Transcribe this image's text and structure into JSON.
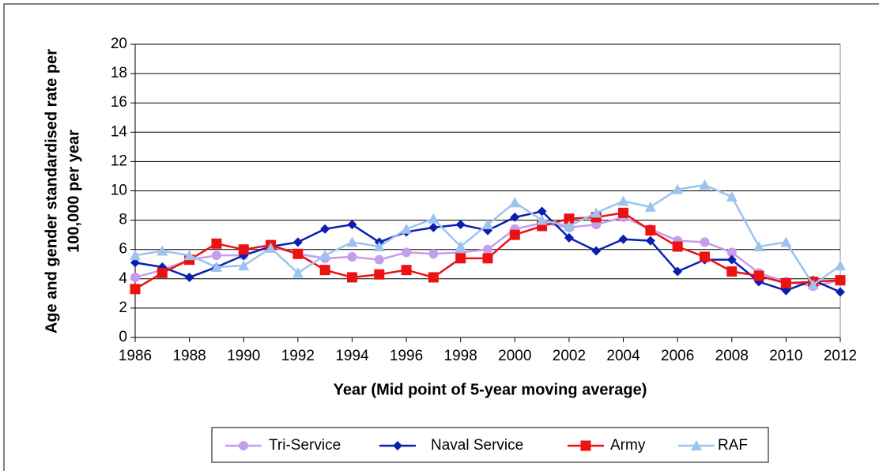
{
  "chart_data": {
    "type": "line",
    "xlabel": "Year (Mid point of 5-year moving average)",
    "ylabel_lines": [
      "Age and gender standardised rate per",
      "100,000 per year"
    ],
    "x": [
      1986,
      1987,
      1988,
      1989,
      1990,
      1991,
      1992,
      1993,
      1994,
      1995,
      1996,
      1997,
      1998,
      1999,
      2000,
      2001,
      2002,
      2003,
      2004,
      2005,
      2006,
      2007,
      2008,
      2009,
      2010,
      2011,
      2012
    ],
    "xlim": [
      1986,
      2012
    ],
    "xticks": [
      1986,
      1988,
      1990,
      1992,
      1994,
      1996,
      1998,
      2000,
      2002,
      2004,
      2006,
      2008,
      2010,
      2012
    ],
    "ylim": [
      0,
      20
    ],
    "yticks": [
      0,
      2,
      4,
      6,
      8,
      10,
      12,
      14,
      16,
      18,
      20
    ],
    "grid": true,
    "legend": "bottom",
    "series": [
      {
        "name": "Tri-Service",
        "color": "#c49ded",
        "marker": "circle",
        "values": [
          4.1,
          4.6,
          5.3,
          5.6,
          5.6,
          6.2,
          5.7,
          5.4,
          5.5,
          5.3,
          5.8,
          5.7,
          5.8,
          6.0,
          7.4,
          7.8,
          7.5,
          7.7,
          8.2,
          7.4,
          6.6,
          6.5,
          5.8,
          4.4,
          3.8,
          3.5,
          3.9
        ]
      },
      {
        "name": "Naval Service",
        "color": "#0a1fb0",
        "marker": "diamond",
        "values": [
          5.1,
          4.8,
          4.1,
          4.8,
          5.6,
          6.2,
          6.5,
          7.4,
          7.7,
          6.5,
          7.2,
          7.5,
          7.7,
          7.3,
          8.2,
          8.6,
          6.8,
          5.9,
          6.7,
          6.6,
          4.5,
          5.3,
          5.3,
          3.8,
          3.2,
          3.9,
          3.1
        ]
      },
      {
        "name": "Army",
        "color": "#ee1111",
        "marker": "square",
        "values": [
          3.3,
          4.4,
          5.3,
          6.4,
          6.0,
          6.3,
          5.7,
          4.6,
          4.1,
          4.3,
          4.6,
          4.1,
          5.4,
          5.4,
          7.0,
          7.6,
          8.1,
          8.2,
          8.5,
          7.3,
          6.2,
          5.5,
          4.5,
          4.2,
          3.7,
          3.8,
          3.9
        ]
      },
      {
        "name": "RAF",
        "color": "#9cc3ee",
        "marker": "triangle",
        "values": [
          5.6,
          5.9,
          5.6,
          4.8,
          4.9,
          6.1,
          4.4,
          5.6,
          6.5,
          6.2,
          7.4,
          8.1,
          6.2,
          7.7,
          9.2,
          8.0,
          7.6,
          8.5,
          9.3,
          8.9,
          10.1,
          10.4,
          9.6,
          6.2,
          6.5,
          3.6,
          4.9
        ]
      }
    ]
  }
}
